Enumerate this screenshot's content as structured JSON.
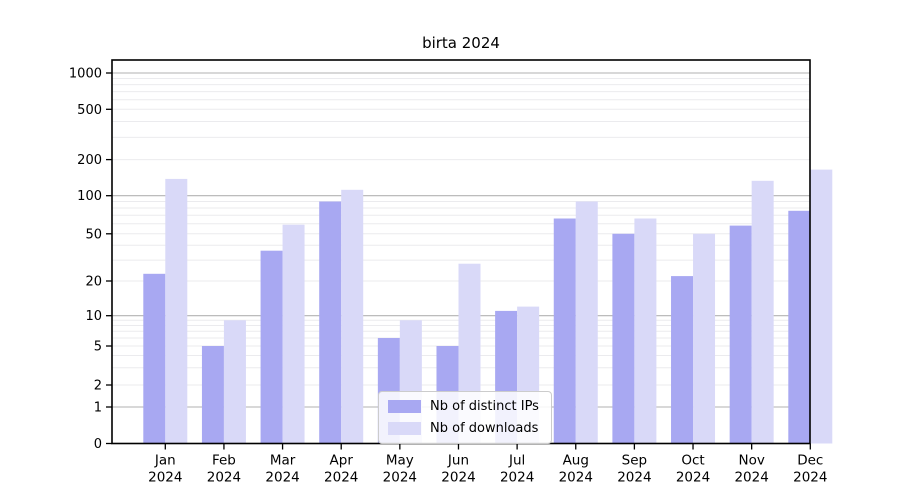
{
  "title": "birta 2024",
  "colors": {
    "ips_bar": "#a8a8f2",
    "downloads_bar": "#d9d9f8",
    "major_grid": "#b2b2b2",
    "minor_grid": "#ebebee",
    "axis": "#000000",
    "legend_border": "#cccccc",
    "text": "#000000"
  },
  "chart_data": {
    "type": "bar",
    "title": "birta 2024",
    "categories": [
      "Jan 2024",
      "Feb 2024",
      "Mar 2024",
      "Apr 2024",
      "May 2024",
      "Jun 2024",
      "Jul 2024",
      "Aug 2024",
      "Sep 2024",
      "Oct 2024",
      "Nov 2024",
      "Dec 2024"
    ],
    "series": [
      {
        "name": "Nb of distinct IPs",
        "values": [
          23,
          5,
          36,
          90,
          6,
          5,
          11,
          66,
          50,
          22,
          58,
          76
        ]
      },
      {
        "name": "Nb of downloads",
        "values": [
          138,
          9,
          59,
          112,
          9,
          28,
          12,
          90,
          66,
          50,
          133,
          165
        ]
      }
    ],
    "yscale": "symlog",
    "yticks": [
      0,
      1,
      2,
      5,
      10,
      20,
      50,
      100,
      200,
      500,
      1000
    ],
    "ylim": [
      0,
      1200
    ],
    "xlabel": "",
    "ylabel": "",
    "grid": "on",
    "legend_position": "lower-center"
  }
}
